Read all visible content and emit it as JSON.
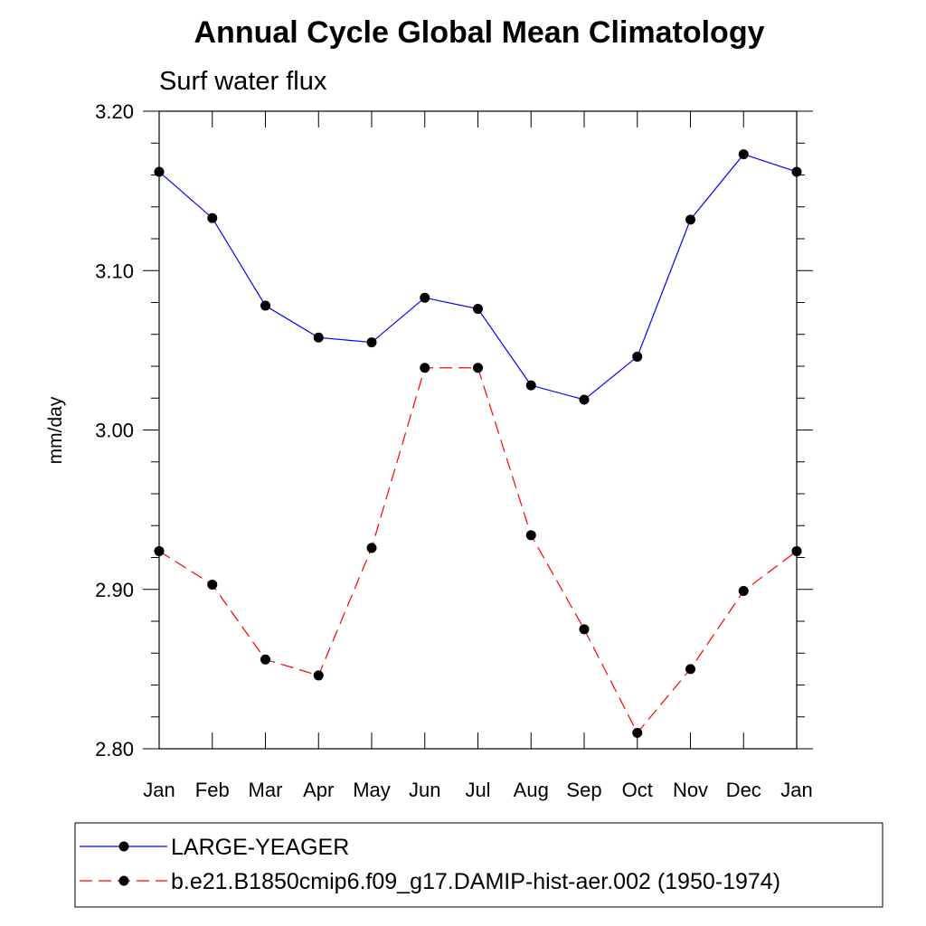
{
  "chart_data": {
    "type": "line",
    "title": "Annual Cycle Global Mean Climatology",
    "subtitle": "Surf water flux",
    "ylabel": "mm/day",
    "xlabel": "",
    "categories": [
      "Jan",
      "Feb",
      "Mar",
      "Apr",
      "May",
      "Jun",
      "Jul",
      "Aug",
      "Sep",
      "Oct",
      "Nov",
      "Dec",
      "Jan"
    ],
    "ylim": [
      2.8,
      3.2
    ],
    "yticks": [
      "2.80",
      "2.90",
      "3.00",
      "3.10",
      "3.20"
    ],
    "grid": false,
    "legend_position": "bottom",
    "series": [
      {
        "name": "LARGE-YEAGER",
        "color": "#0000ff",
        "line_style": "solid",
        "marker": "filled-circle",
        "values": [
          3.162,
          3.133,
          3.078,
          3.058,
          3.055,
          3.083,
          3.076,
          3.028,
          3.019,
          3.046,
          3.132,
          3.173,
          3.162
        ]
      },
      {
        "name": "b.e21.B1850cmip6.f09_g17.DAMIP-hist-aer.002 (1950-1974)",
        "color": "#ff0000",
        "line_style": "dashed",
        "marker": "filled-circle",
        "values": [
          2.924,
          2.903,
          2.856,
          2.846,
          2.926,
          3.039,
          3.039,
          2.934,
          2.875,
          2.81,
          2.85,
          2.899,
          2.924
        ]
      }
    ]
  }
}
